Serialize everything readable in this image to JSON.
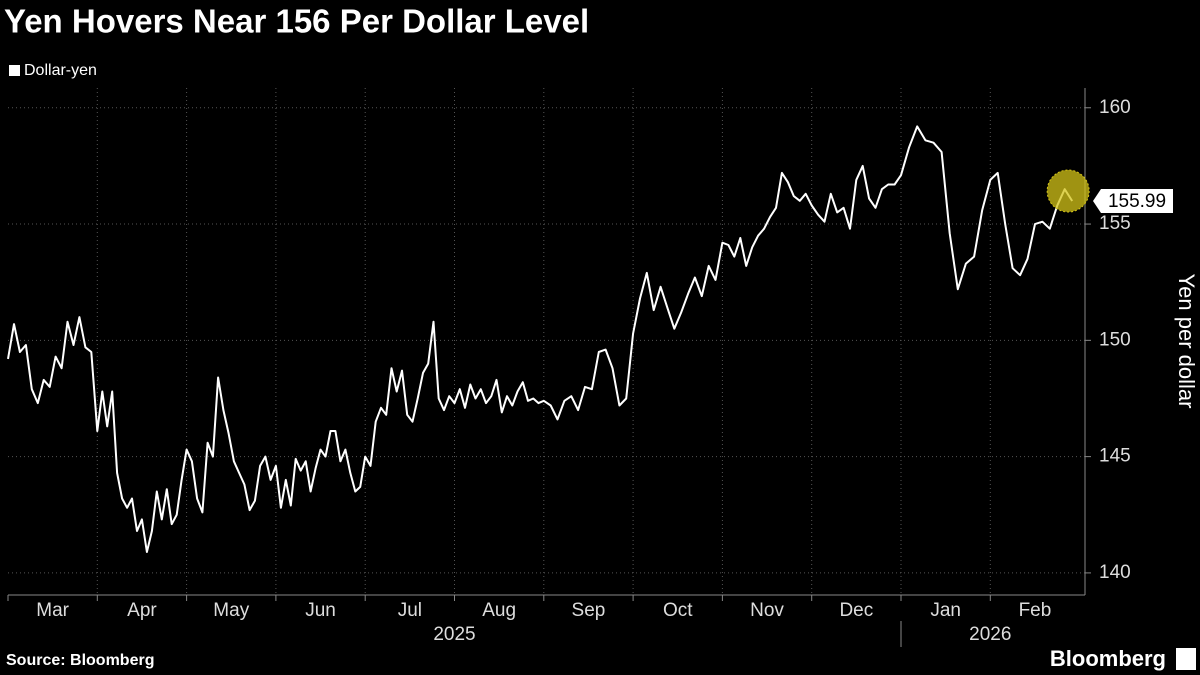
{
  "chart_data": {
    "type": "line",
    "title": "Yen Hovers Near 156 Per Dollar Level",
    "y_axis_label": "Yen per dollar",
    "source": "Source: Bloomberg",
    "brand": "Bloomberg",
    "ylim": [
      139.05,
      160.85
    ],
    "yticks": [
      140,
      145,
      150,
      155,
      160
    ],
    "grid": true,
    "categories": [
      "Mar",
      null,
      null,
      null,
      null,
      null,
      null,
      null,
      null,
      null,
      null,
      null,
      null,
      null,
      null,
      "Apr",
      null,
      null,
      null,
      null,
      null,
      null,
      null,
      null,
      null,
      null,
      null,
      null,
      null,
      null,
      null,
      null,
      null,
      "May",
      null,
      null,
      null,
      null,
      null,
      null,
      null,
      null,
      null,
      null,
      null,
      null,
      null,
      null,
      null,
      null,
      "Jun",
      null,
      null,
      null,
      null,
      null,
      null,
      null,
      null,
      null,
      null,
      null,
      null,
      null,
      null,
      null,
      null,
      null,
      "Jul",
      null,
      null,
      null,
      null,
      null,
      null,
      null,
      null,
      null,
      null,
      null,
      null,
      null,
      null,
      null,
      null,
      "Aug",
      null,
      null,
      null,
      null,
      null,
      null,
      null,
      null,
      null,
      null,
      null,
      null,
      null,
      null,
      null,
      null,
      "Sep",
      null,
      null,
      null,
      null,
      null,
      null,
      null,
      null,
      null,
      null,
      null,
      null,
      "Oct",
      null,
      null,
      null,
      null,
      null,
      null,
      null,
      null,
      null,
      null,
      null,
      null,
      "Nov",
      null,
      null,
      null,
      null,
      null,
      null,
      null,
      null,
      null,
      null,
      null,
      null,
      null,
      null,
      "Dec",
      null,
      null,
      null,
      null,
      null,
      null,
      null,
      null,
      null,
      null,
      null,
      null,
      null,
      "Jan",
      null,
      null,
      null,
      null,
      null,
      null,
      null,
      null,
      null,
      null,
      "Feb",
      null,
      null,
      null,
      null,
      null,
      null,
      null,
      null,
      null,
      null,
      null
    ],
    "categories_year": [
      "2025",
      null,
      null,
      null,
      null,
      null,
      null,
      null,
      null,
      null,
      null,
      null,
      null,
      null,
      null,
      null,
      null,
      null,
      null,
      null,
      null,
      null,
      null,
      null,
      null,
      null,
      null,
      null,
      null,
      null,
      null,
      null,
      null,
      null,
      null,
      null,
      null,
      null,
      null,
      null,
      null,
      null,
      null,
      null,
      null,
      null,
      null,
      null,
      null,
      null,
      null,
      null,
      null,
      null,
      null,
      null,
      null,
      null,
      null,
      null,
      null,
      null,
      null,
      null,
      null,
      null,
      null,
      null,
      null,
      null,
      null,
      null,
      null,
      null,
      null,
      null,
      null,
      null,
      null,
      null,
      null,
      null,
      null,
      null,
      null,
      null,
      null,
      null,
      null,
      null,
      null,
      null,
      null,
      null,
      null,
      null,
      null,
      null,
      null,
      null,
      null,
      null,
      null,
      null,
      null,
      null,
      null,
      null,
      null,
      null,
      null,
      null,
      null,
      null,
      null,
      null,
      null,
      null,
      null,
      null,
      null,
      null,
      null,
      null,
      null,
      null,
      null,
      null,
      null,
      null,
      null,
      null,
      null,
      null,
      null,
      null,
      null,
      null,
      null,
      null,
      null,
      null,
      null,
      null,
      null,
      null,
      null,
      null,
      null,
      null,
      null,
      null,
      null,
      null,
      null,
      null,
      null,
      "2026",
      null,
      null,
      null,
      null,
      null,
      null,
      null,
      null,
      null,
      null,
      null,
      null,
      null,
      null,
      null,
      null,
      null,
      null,
      null,
      null,
      null,
      null
    ],
    "series": [
      {
        "name": "Dollar-yen",
        "color": "#ffffff",
        "values": [
          149.2,
          150.7,
          149.5,
          149.8,
          147.9,
          147.3,
          148.3,
          148.0,
          149.3,
          148.8,
          150.8,
          149.8,
          151.0,
          149.7,
          149.5,
          146.1,
          147.8,
          146.3,
          147.8,
          144.3,
          143.2,
          142.8,
          143.2,
          141.8,
          142.3,
          140.9,
          141.8,
          143.5,
          142.3,
          143.6,
          142.1,
          142.5,
          144.0,
          145.3,
          144.8,
          143.2,
          142.6,
          145.6,
          145.0,
          148.4,
          147.0,
          146.0,
          144.8,
          144.3,
          143.8,
          142.7,
          143.1,
          144.6,
          145.0,
          144.0,
          144.6,
          142.8,
          144.0,
          142.9,
          144.9,
          144.4,
          144.8,
          143.5,
          144.5,
          145.3,
          145.0,
          146.1,
          146.1,
          144.8,
          145.3,
          144.3,
          143.5,
          143.7,
          145.0,
          144.6,
          146.5,
          147.1,
          146.8,
          148.8,
          147.8,
          148.7,
          146.8,
          146.5,
          147.5,
          148.6,
          149.0,
          150.8,
          147.5,
          147.0,
          147.6,
          147.3,
          147.9,
          147.1,
          148.1,
          147.5,
          147.9,
          147.3,
          147.6,
          148.3,
          146.9,
          147.6,
          147.2,
          147.8,
          148.2,
          147.4,
          147.5,
          147.3,
          147.4,
          147.2,
          146.6,
          147.4,
          147.6,
          147.0,
          148.0,
          147.9,
          149.5,
          149.6,
          148.8,
          147.2,
          147.5,
          150.3,
          151.8,
          152.9,
          151.3,
          152.3,
          151.4,
          150.5,
          151.2,
          152.0,
          152.7,
          151.9,
          153.2,
          152.6,
          154.2,
          154.1,
          153.6,
          154.4,
          153.2,
          154.0,
          154.5,
          154.8,
          155.3,
          155.7,
          157.2,
          156.8,
          156.2,
          156.0,
          156.3,
          155.8,
          155.4,
          155.1,
          156.3,
          155.5,
          155.7,
          154.8,
          156.9,
          157.5,
          156.1,
          155.7,
          156.5,
          156.7,
          156.7,
          157.1,
          158.3,
          159.2,
          158.6,
          158.5,
          158.1,
          154.6,
          152.2,
          153.3,
          153.6,
          155.6,
          156.9,
          157.2,
          155.0,
          153.1,
          152.8,
          153.5,
          155.0,
          155.1,
          154.8,
          155.8,
          156.5,
          155.99
        ]
      }
    ],
    "highlight_color": "#d4c418"
  }
}
